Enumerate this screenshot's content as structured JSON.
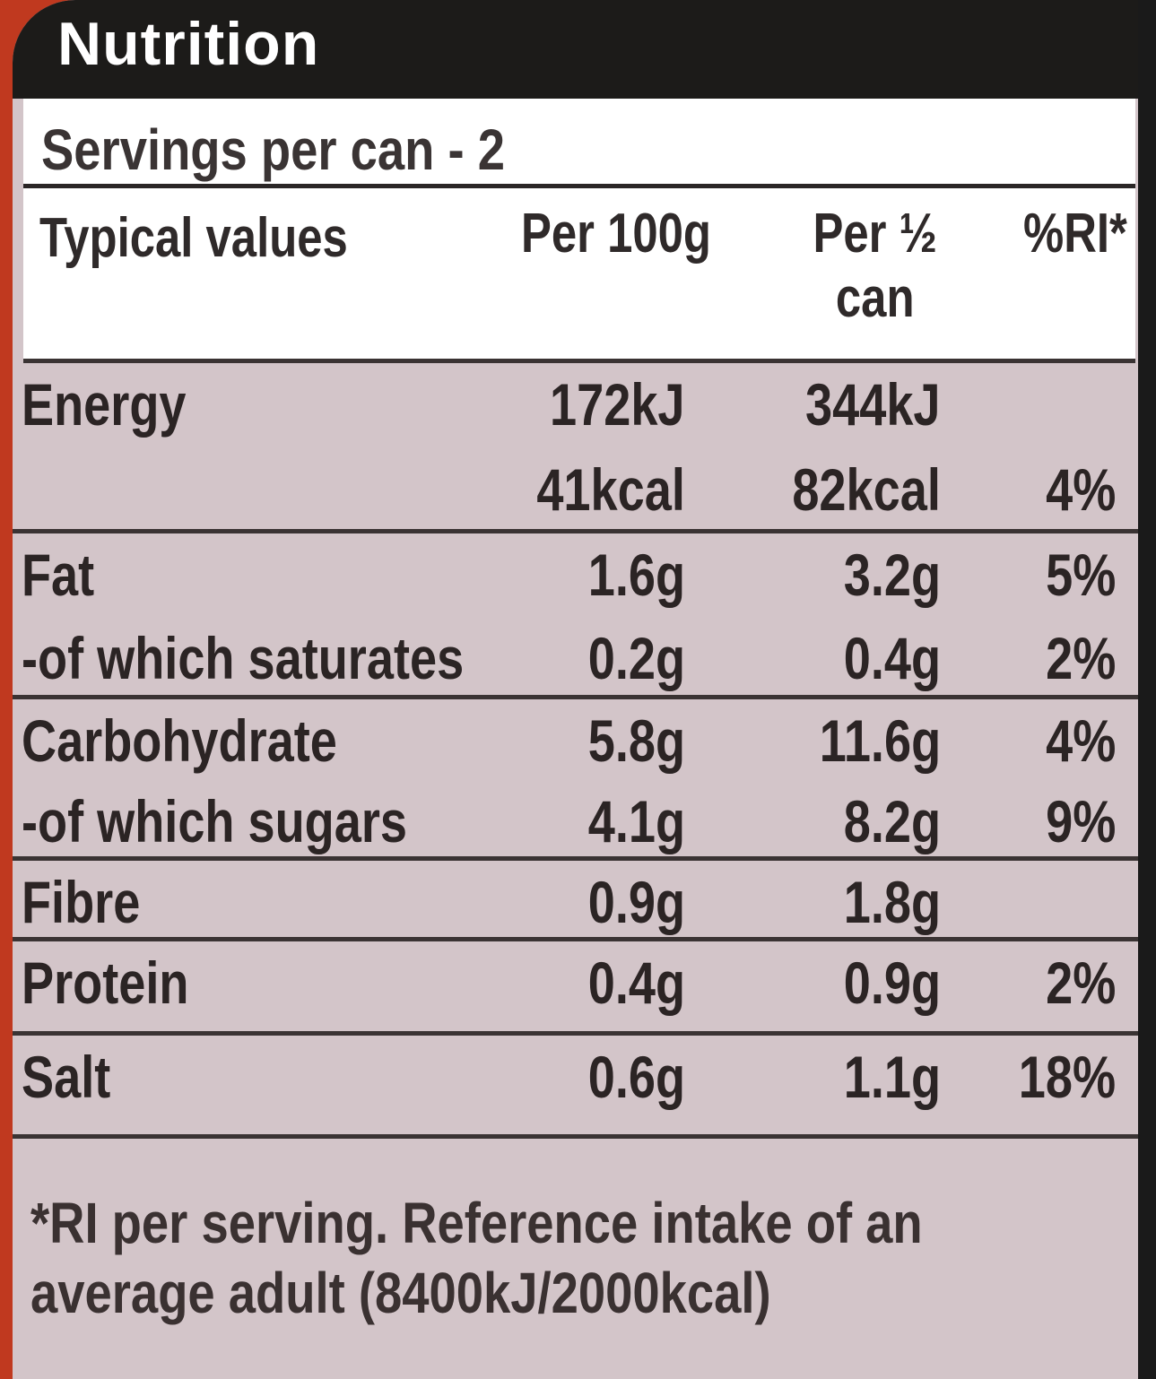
{
  "header": {
    "title": "Nutrition"
  },
  "servings": "Servings per can - 2",
  "columns": {
    "name": "Typical values",
    "per100": "Per 100g",
    "half_line1": "Per ½",
    "half_line2": "can",
    "ri": "%RI*"
  },
  "rows": [
    {
      "lines": [
        {
          "name": "Energy",
          "per100": "172kJ",
          "half": "344kJ",
          "ri": ""
        },
        {
          "name": "",
          "per100": "41kcal",
          "half": "82kcal",
          "ri": "4%"
        }
      ]
    },
    {
      "lines": [
        {
          "name": "Fat",
          "per100": "1.6g",
          "half": "3.2g",
          "ri": "5%"
        },
        {
          "name": "-of which saturates",
          "per100": "0.2g",
          "half": "0.4g",
          "ri": "2%"
        }
      ]
    },
    {
      "lines": [
        {
          "name": "Carbohydrate",
          "per100": "5.8g",
          "half": "11.6g",
          "ri": "4%"
        },
        {
          "name": "-of which sugars",
          "per100": "4.1g",
          "half": "8.2g",
          "ri": "9%"
        }
      ]
    },
    {
      "lines": [
        {
          "name": "Fibre",
          "per100": "0.9g",
          "half": "1.8g",
          "ri": ""
        }
      ]
    },
    {
      "lines": [
        {
          "name": "Protein",
          "per100": "0.4g",
          "half": "0.9g",
          "ri": "2%"
        }
      ]
    },
    {
      "lines": [
        {
          "name": "Salt",
          "per100": "0.6g",
          "half": "1.1g",
          "ri": "18%"
        }
      ]
    }
  ],
  "footnote": {
    "line1": "*RI per serving. Reference intake of an",
    "line2": "average adult (8400kJ/2000kcal)"
  },
  "colors": {
    "label_bg": "#d3c5c9",
    "header_bg": "#1c1b19",
    "can_red": "#c0391f"
  }
}
